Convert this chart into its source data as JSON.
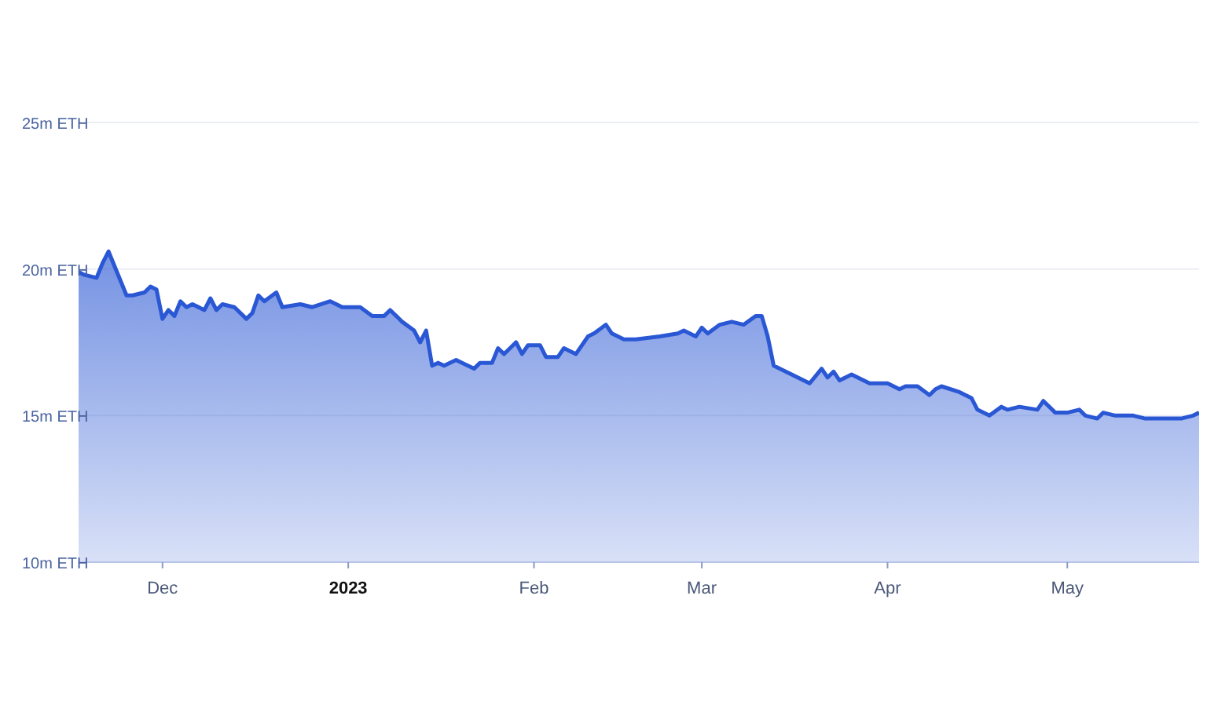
{
  "chart_data": {
    "type": "area",
    "x": [
      "2022-11-17",
      "2022-11-18",
      "2022-11-20",
      "2022-11-21",
      "2022-11-22",
      "2022-11-23",
      "2022-11-25",
      "2022-11-26",
      "2022-11-28",
      "2022-11-29",
      "2022-11-30",
      "2022-12-01",
      "2022-12-02",
      "2022-12-03",
      "2022-12-04",
      "2022-12-05",
      "2022-12-06",
      "2022-12-08",
      "2022-12-09",
      "2022-12-10",
      "2022-12-11",
      "2022-12-13",
      "2022-12-15",
      "2022-12-16",
      "2022-12-17",
      "2022-12-18",
      "2022-12-20",
      "2022-12-21",
      "2022-12-24",
      "2022-12-26",
      "2022-12-29",
      "2022-12-31",
      "2023-01-03",
      "2023-01-05",
      "2023-01-07",
      "2023-01-08",
      "2023-01-10",
      "2023-01-12",
      "2023-01-13",
      "2023-01-14",
      "2023-01-15",
      "2023-01-16",
      "2023-01-17",
      "2023-01-19",
      "2023-01-20",
      "2023-01-22",
      "2023-01-23",
      "2023-01-25",
      "2023-01-26",
      "2023-01-27",
      "2023-01-29",
      "2023-01-30",
      "2023-01-31",
      "2023-02-02",
      "2023-02-03",
      "2023-02-05",
      "2023-02-06",
      "2023-02-08",
      "2023-02-10",
      "2023-02-11",
      "2023-02-13",
      "2023-02-14",
      "2023-02-16",
      "2023-02-18",
      "2023-02-22",
      "2023-02-25",
      "2023-02-26",
      "2023-02-28",
      "2023-03-01",
      "2023-03-02",
      "2023-03-04",
      "2023-03-06",
      "2023-03-08",
      "2023-03-10",
      "2023-03-11",
      "2023-03-12",
      "2023-03-13",
      "2023-03-15",
      "2023-03-17",
      "2023-03-19",
      "2023-03-21",
      "2023-03-22",
      "2023-03-23",
      "2023-03-24",
      "2023-03-26",
      "2023-03-28",
      "2023-03-29",
      "2023-04-01",
      "2023-04-03",
      "2023-04-04",
      "2023-04-06",
      "2023-04-08",
      "2023-04-09",
      "2023-04-10",
      "2023-04-13",
      "2023-04-15",
      "2023-04-16",
      "2023-04-17",
      "2023-04-18",
      "2023-04-20",
      "2023-04-21",
      "2023-04-23",
      "2023-04-26",
      "2023-04-27",
      "2023-04-29",
      "2023-05-01",
      "2023-05-03",
      "2023-05-04",
      "2023-05-06",
      "2023-05-07",
      "2023-05-09",
      "2023-05-12",
      "2023-05-14",
      "2023-05-20",
      "2023-05-22",
      "2023-05-23"
    ],
    "values": [
      19.9,
      19.8,
      19.7,
      20.2,
      20.6,
      20.1,
      19.1,
      19.1,
      19.2,
      19.4,
      19.3,
      18.3,
      18.6,
      18.4,
      18.9,
      18.7,
      18.8,
      18.6,
      19.0,
      18.6,
      18.8,
      18.7,
      18.3,
      18.5,
      19.1,
      18.9,
      19.2,
      18.7,
      18.8,
      18.7,
      18.9,
      18.7,
      18.7,
      18.4,
      18.4,
      18.6,
      18.2,
      17.9,
      17.5,
      17.9,
      16.7,
      16.8,
      16.7,
      16.9,
      16.8,
      16.6,
      16.8,
      16.8,
      17.3,
      17.1,
      17.5,
      17.1,
      17.4,
      17.4,
      17.0,
      17.0,
      17.3,
      17.1,
      17.7,
      17.8,
      18.1,
      17.8,
      17.6,
      17.6,
      17.7,
      17.8,
      17.9,
      17.7,
      18.0,
      17.8,
      18.1,
      18.2,
      18.1,
      18.4,
      18.4,
      17.7,
      16.7,
      16.5,
      16.3,
      16.1,
      16.6,
      16.3,
      16.5,
      16.2,
      16.4,
      16.2,
      16.1,
      16.1,
      15.9,
      16.0,
      16.0,
      15.7,
      15.9,
      16.0,
      15.8,
      15.6,
      15.2,
      15.1,
      15.0,
      15.3,
      15.2,
      15.3,
      15.2,
      15.5,
      15.1,
      15.1,
      15.2,
      15.0,
      14.9,
      15.1,
      15.0,
      15.0,
      14.9,
      14.9,
      15.0,
      15.1
    ],
    "color": "#2a57d4",
    "xlim": [
      "2022-11-17",
      "2023-05-23"
    ],
    "xticks": [
      {
        "value": "2022-12-01",
        "label": "Dec"
      },
      {
        "value": "2023-01-01",
        "label": "2023"
      },
      {
        "value": "2023-02-01",
        "label": "Feb"
      },
      {
        "value": "2023-03-01",
        "label": "Mar"
      },
      {
        "value": "2023-04-01",
        "label": "Apr"
      },
      {
        "value": "2023-05-01",
        "label": "May"
      }
    ],
    "ylim": [
      10,
      25
    ],
    "yticks": [
      {
        "value": 10,
        "label": "10m ETH"
      },
      {
        "value": 15,
        "label": "15m ETH"
      },
      {
        "value": 20,
        "label": "20m ETH"
      },
      {
        "value": 25,
        "label": "25m ETH"
      }
    ],
    "grid": "y",
    "legend": false
  }
}
